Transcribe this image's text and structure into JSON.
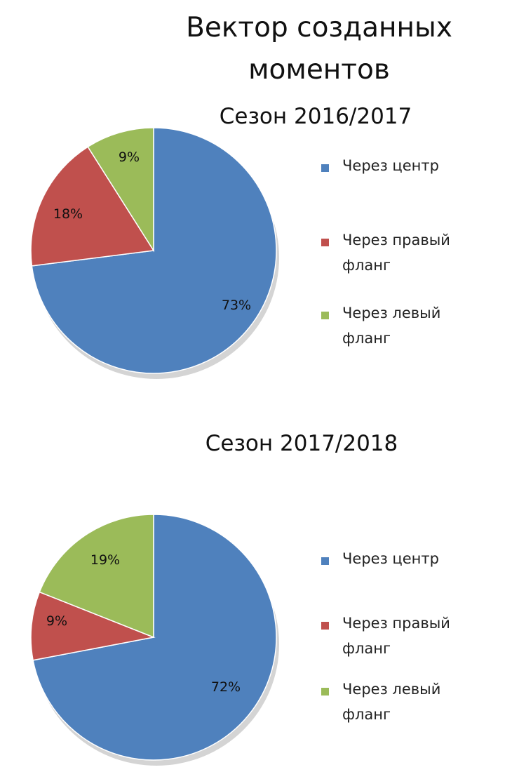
{
  "title": "Вектор созданных моментов",
  "title_line1": "Вектор созданных",
  "title_line2": "моментов",
  "colors": {
    "center": "#4f81bd",
    "right": "#c0504d",
    "left": "#9bbb59"
  },
  "chart_data": [
    {
      "type": "pie",
      "title": "Сезон 2016/2017",
      "categories": [
        "Через центр",
        "Через правый фланг",
        "Через левый фланг"
      ],
      "values": [
        73,
        18,
        9
      ],
      "labels": [
        "73%",
        "18%",
        "9%"
      ],
      "legend_placement": "right"
    },
    {
      "type": "pie",
      "title": "Сезон 2017/2018",
      "categories": [
        "Через центр",
        "Через правый фланг",
        "Через левый фланг"
      ],
      "values": [
        72,
        9,
        19
      ],
      "labels": [
        "72%",
        "9%",
        "19%"
      ],
      "legend_placement": "right"
    }
  ],
  "legend_lines": {
    "center": "Через центр",
    "right_1": "Через правый",
    "right_2": "фланг",
    "left_1": "Через левый",
    "left_2": "фланг"
  }
}
